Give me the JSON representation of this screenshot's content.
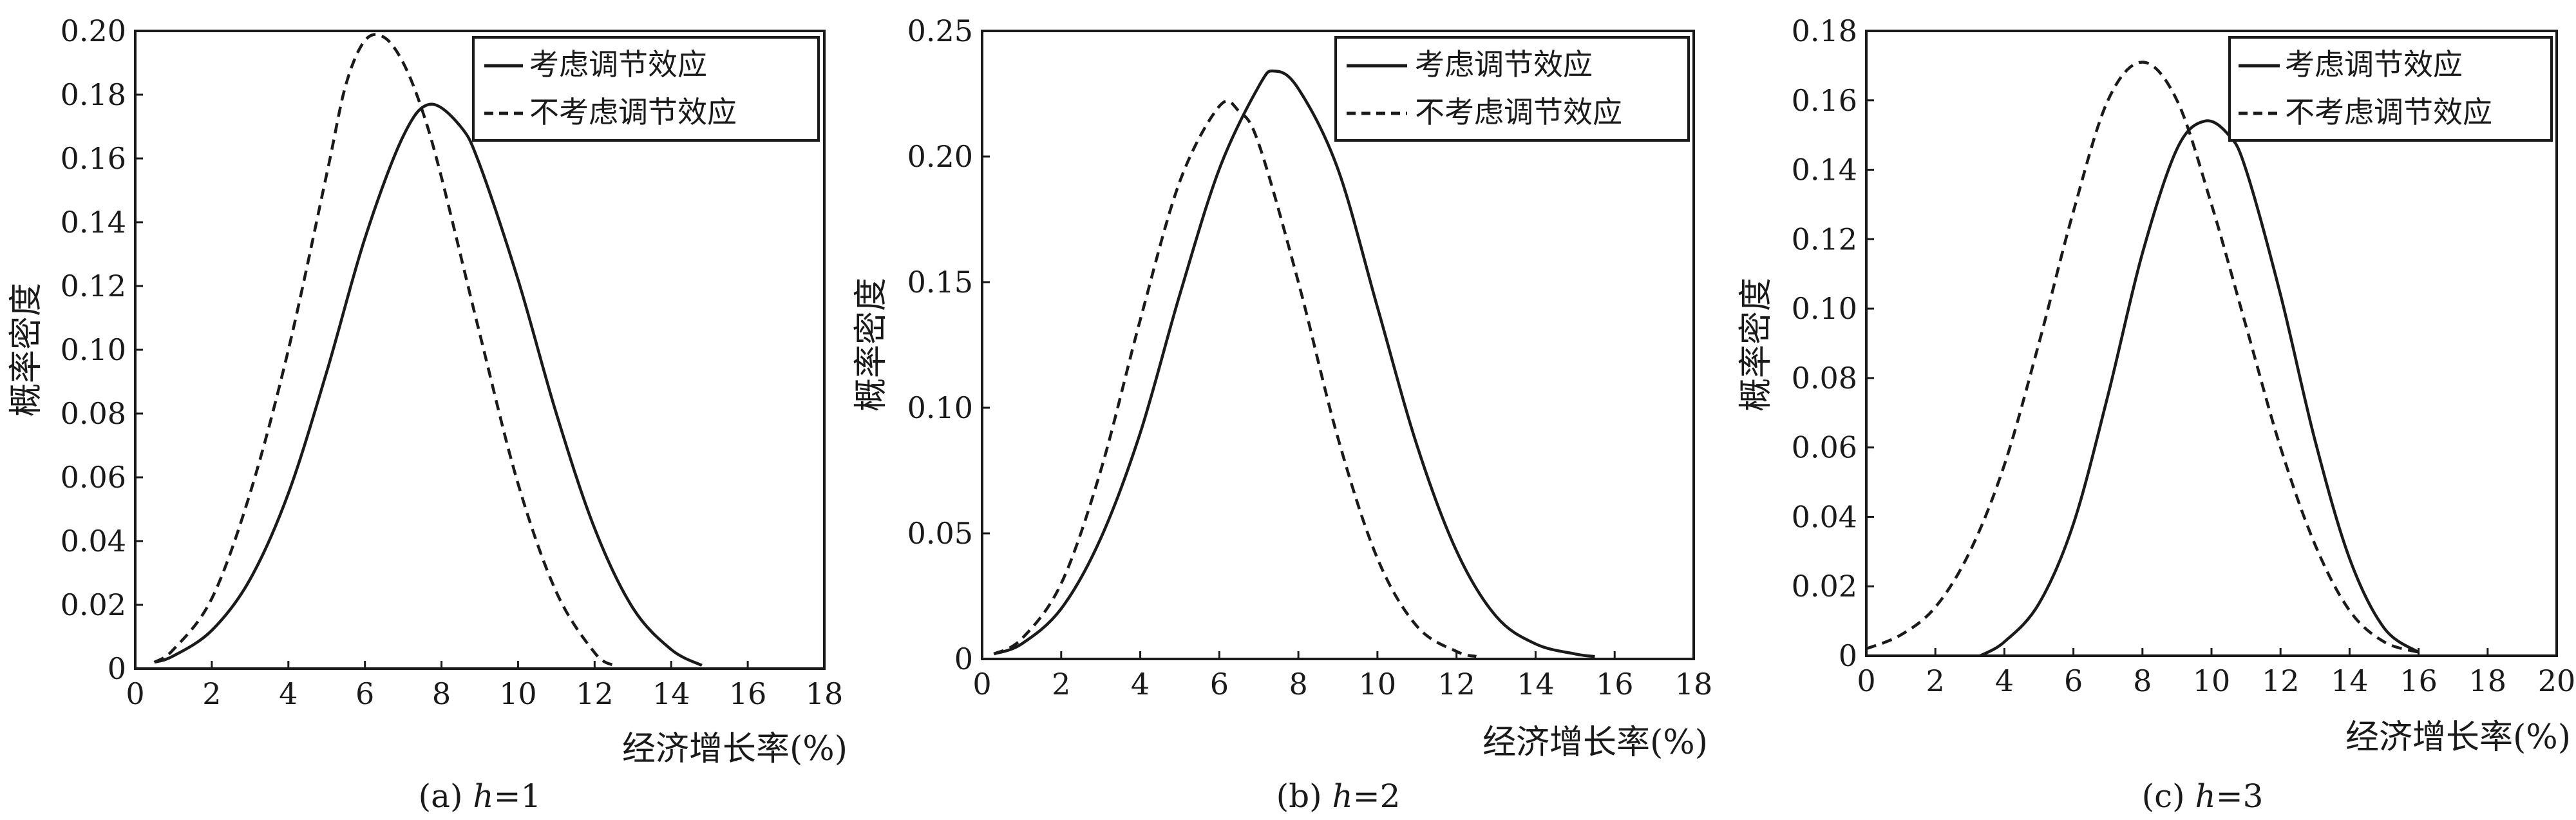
{
  "chart_data": [
    {
      "type": "line",
      "caption": "(a) h=1",
      "caption_prefix": "(a) ",
      "caption_var": "h",
      "caption_suffix": "=1",
      "xlabel": "经济增长率(%)",
      "ylabel": "概率密度",
      "xlim": [
        0,
        18
      ],
      "ylim": [
        0,
        0.2
      ],
      "xticks": [
        0,
        2,
        4,
        6,
        8,
        10,
        12,
        14,
        16,
        18
      ],
      "xtick_labels": [
        "0",
        "2",
        "4",
        "6",
        "8",
        "10",
        "12",
        "14",
        "16",
        "18"
      ],
      "yticks": [
        0,
        0.02,
        0.04,
        0.06,
        0.08,
        0.1,
        0.12,
        0.14,
        0.16,
        0.18,
        0.2
      ],
      "ytick_labels": [
        "0",
        "0.02",
        "0.04",
        "0.06",
        "0.08",
        "0.10",
        "0.12",
        "0.14",
        "0.16",
        "0.18",
        "0.20"
      ],
      "legend_position": "top-right",
      "grid": false,
      "series": [
        {
          "name": "考虑调节效应",
          "line_style": "solid",
          "x": [
            0.5,
            1,
            2,
            3,
            4,
            5,
            6,
            7,
            7.7,
            8.5,
            9,
            10,
            11,
            12,
            13,
            14,
            14.8
          ],
          "y": [
            0.002,
            0.004,
            0.012,
            0.028,
            0.055,
            0.093,
            0.135,
            0.167,
            0.177,
            0.17,
            0.158,
            0.122,
            0.08,
            0.044,
            0.019,
            0.006,
            0.001
          ]
        },
        {
          "name": "不考虑调节效应",
          "line_style": "dashed",
          "x": [
            0.5,
            1,
            2,
            3,
            4,
            5,
            5.5,
            6,
            6.5,
            7,
            7.5,
            8,
            9,
            10,
            11,
            12,
            12.5
          ],
          "y": [
            0.002,
            0.006,
            0.022,
            0.055,
            0.1,
            0.155,
            0.183,
            0.197,
            0.198,
            0.19,
            0.175,
            0.154,
            0.105,
            0.058,
            0.024,
            0.005,
            0.001
          ]
        }
      ]
    },
    {
      "type": "line",
      "caption": "(b) h=2",
      "caption_prefix": "(b) ",
      "caption_var": "h",
      "caption_suffix": "=2",
      "xlabel": "经济增长率(%)",
      "ylabel": "概率密度",
      "xlim": [
        0,
        18
      ],
      "ylim": [
        0,
        0.25
      ],
      "xticks": [
        0,
        2,
        4,
        6,
        8,
        10,
        12,
        14,
        16,
        18
      ],
      "xtick_labels": [
        "0",
        "2",
        "4",
        "6",
        "8",
        "10",
        "12",
        "14",
        "16",
        "18"
      ],
      "yticks": [
        0,
        0.05,
        0.1,
        0.15,
        0.2,
        0.25
      ],
      "ytick_labels": [
        "0",
        "0.05",
        "0.10",
        "0.15",
        "0.20",
        "0.25"
      ],
      "legend_position": "top-right",
      "grid": false,
      "series": [
        {
          "name": "考虑调节效应",
          "line_style": "solid",
          "x": [
            0.3,
            1,
            2,
            3,
            4,
            5,
            6,
            7,
            7.4,
            8,
            9,
            10,
            11,
            12,
            13,
            14,
            15,
            15.5
          ],
          "y": [
            0.002,
            0.006,
            0.02,
            0.048,
            0.09,
            0.145,
            0.195,
            0.228,
            0.234,
            0.227,
            0.195,
            0.14,
            0.085,
            0.043,
            0.017,
            0.006,
            0.002,
            0.001
          ]
        },
        {
          "name": "不考虑调节效应",
          "line_style": "dashed",
          "x": [
            0.3,
            1,
            2,
            3,
            4,
            5,
            6,
            6.5,
            7,
            8,
            9,
            10,
            11,
            12,
            12.5
          ],
          "y": [
            0.002,
            0.008,
            0.03,
            0.075,
            0.135,
            0.19,
            0.22,
            0.218,
            0.205,
            0.15,
            0.088,
            0.04,
            0.013,
            0.003,
            0.001
          ]
        }
      ]
    },
    {
      "type": "line",
      "caption": "(c) h=3",
      "caption_prefix": "(c) ",
      "caption_var": "h",
      "caption_suffix": "=3",
      "xlabel": "经济增长率(%)",
      "ylabel": "概率密度",
      "xlim": [
        0,
        20
      ],
      "ylim": [
        0,
        0.18
      ],
      "xticks": [
        0,
        2,
        4,
        6,
        8,
        10,
        12,
        14,
        16,
        18,
        20
      ],
      "xtick_labels": [
        "0",
        "2",
        "4",
        "6",
        "8",
        "10",
        "12",
        "14",
        "16",
        "18",
        "20"
      ],
      "yticks": [
        0,
        0.02,
        0.04,
        0.06,
        0.08,
        0.1,
        0.12,
        0.14,
        0.16,
        0.18
      ],
      "ytick_labels": [
        "0",
        "0.02",
        "0.04",
        "0.06",
        "0.08",
        "0.10",
        "0.12",
        "0.14",
        "0.16",
        "0.18"
      ],
      "legend_position": "top-right",
      "grid": false,
      "series": [
        {
          "name": "考虑调节效应",
          "line_style": "solid",
          "x": [
            3.3,
            4,
            5,
            6,
            7,
            8,
            9,
            9.8,
            10.5,
            11,
            12,
            13,
            14,
            15,
            16
          ],
          "y": [
            0.0,
            0.004,
            0.015,
            0.038,
            0.075,
            0.116,
            0.146,
            0.154,
            0.15,
            0.14,
            0.104,
            0.062,
            0.028,
            0.008,
            0.001
          ]
        },
        {
          "name": "不考虑调节效应",
          "line_style": "dashed",
          "x": [
            0,
            1,
            2,
            3,
            4,
            5,
            6,
            7,
            8,
            9,
            10,
            11,
            12,
            13,
            14,
            15,
            16
          ],
          "y": [
            0.002,
            0.006,
            0.014,
            0.03,
            0.055,
            0.09,
            0.128,
            0.16,
            0.171,
            0.16,
            0.13,
            0.095,
            0.06,
            0.032,
            0.013,
            0.004,
            0.001
          ]
        }
      ]
    }
  ]
}
